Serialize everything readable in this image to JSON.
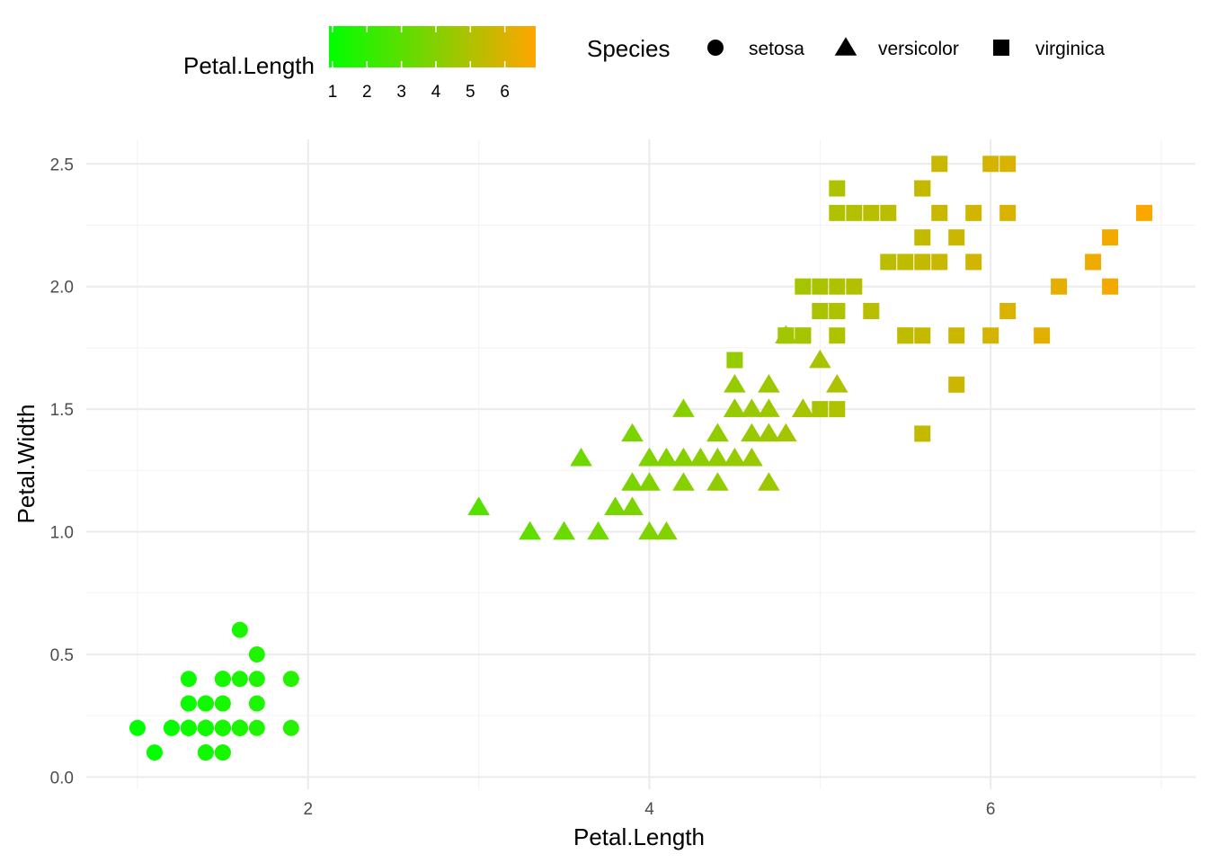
{
  "chart_data": {
    "type": "scatter",
    "xlabel": "Petal.Length",
    "ylabel": "Petal.Width",
    "xlim": [
      0.7,
      7.2
    ],
    "ylim": [
      -0.05,
      2.6
    ],
    "x_ticks": [
      2,
      4,
      6
    ],
    "y_ticks": [
      0.0,
      0.5,
      1.0,
      1.5,
      2.0,
      2.5
    ],
    "x_tick_labels": [
      "2",
      "4",
      "6"
    ],
    "y_tick_labels": [
      "0.0",
      "0.5",
      "1.0",
      "1.5",
      "2.0",
      "2.5"
    ],
    "grid": true,
    "theme": "minimal",
    "legend_position": "top",
    "color_legend": {
      "title": "Petal.Length",
      "range": [
        1,
        7
      ],
      "ticks": [
        1,
        2,
        3,
        4,
        5,
        6
      ],
      "tick_labels": [
        "1",
        "2",
        "3",
        "4",
        "5",
        "6"
      ],
      "low_color": "#00ff00",
      "high_color": "#ffa500"
    },
    "shape_legend": {
      "title": "Species",
      "items": [
        {
          "label": "setosa",
          "shape": "circle"
        },
        {
          "label": "versicolor",
          "shape": "triangle"
        },
        {
          "label": "virginica",
          "shape": "square"
        }
      ]
    },
    "series": [
      {
        "species": "setosa",
        "shape": "circle",
        "x": [
          1.4,
          1.4,
          1.3,
          1.5,
          1.4,
          1.7,
          1.4,
          1.5,
          1.4,
          1.5,
          1.5,
          1.6,
          1.4,
          1.1,
          1.2,
          1.5,
          1.3,
          1.4,
          1.7,
          1.5,
          1.7,
          1.5,
          1.0,
          1.7,
          1.9,
          1.6,
          1.6,
          1.5,
          1.4,
          1.6,
          1.6,
          1.5,
          1.5,
          1.4,
          1.5,
          1.2,
          1.3,
          1.4,
          1.3,
          1.5,
          1.3,
          1.3,
          1.3,
          1.6,
          1.9,
          1.4,
          1.6,
          1.4,
          1.5,
          1.4
        ],
        "y": [
          0.2,
          0.2,
          0.2,
          0.2,
          0.2,
          0.4,
          0.3,
          0.2,
          0.2,
          0.1,
          0.2,
          0.2,
          0.1,
          0.1,
          0.2,
          0.4,
          0.4,
          0.3,
          0.3,
          0.3,
          0.2,
          0.4,
          0.2,
          0.5,
          0.2,
          0.2,
          0.4,
          0.2,
          0.2,
          0.2,
          0.2,
          0.4,
          0.1,
          0.2,
          0.2,
          0.2,
          0.2,
          0.1,
          0.2,
          0.2,
          0.3,
          0.3,
          0.2,
          0.6,
          0.4,
          0.3,
          0.2,
          0.2,
          0.2,
          0.2
        ]
      },
      {
        "species": "versicolor",
        "shape": "triangle",
        "x": [
          4.7,
          4.5,
          4.9,
          4.0,
          4.6,
          4.5,
          4.7,
          3.3,
          4.6,
          3.9,
          3.5,
          4.2,
          4.0,
          4.7,
          3.6,
          4.4,
          4.5,
          4.1,
          4.5,
          3.9,
          4.8,
          4.0,
          4.9,
          4.7,
          4.3,
          4.4,
          4.8,
          5.0,
          4.5,
          3.5,
          3.8,
          3.7,
          3.9,
          5.1,
          4.5,
          4.5,
          4.7,
          4.4,
          4.1,
          4.0,
          4.4,
          4.6,
          4.0,
          3.3,
          4.2,
          4.2,
          4.2,
          4.3,
          3.0,
          4.1
        ],
        "y": [
          1.4,
          1.5,
          1.5,
          1.3,
          1.5,
          1.3,
          1.6,
          1.0,
          1.3,
          1.4,
          1.0,
          1.5,
          1.0,
          1.4,
          1.3,
          1.4,
          1.5,
          1.0,
          1.5,
          1.1,
          1.8,
          1.3,
          1.5,
          1.2,
          1.3,
          1.4,
          1.4,
          1.7,
          1.5,
          1.0,
          1.1,
          1.0,
          1.2,
          1.6,
          1.5,
          1.6,
          1.5,
          1.3,
          1.3,
          1.3,
          1.2,
          1.4,
          1.2,
          1.0,
          1.3,
          1.2,
          1.3,
          1.3,
          1.1,
          1.3
        ]
      },
      {
        "species": "virginica",
        "shape": "square",
        "x": [
          6.0,
          5.1,
          5.9,
          5.6,
          5.8,
          6.6,
          4.5,
          6.3,
          5.8,
          6.1,
          5.1,
          5.3,
          5.5,
          5.0,
          5.1,
          5.3,
          5.5,
          6.7,
          6.9,
          5.0,
          5.7,
          4.9,
          6.7,
          4.9,
          5.7,
          6.0,
          4.8,
          4.9,
          5.6,
          5.8,
          6.1,
          6.4,
          5.6,
          5.1,
          5.6,
          6.1,
          5.6,
          5.5,
          4.8,
          5.4,
          5.6,
          5.1,
          5.1,
          5.9,
          5.7,
          5.2,
          5.0,
          5.2,
          5.4,
          5.1
        ],
        "y": [
          2.5,
          1.9,
          2.1,
          1.8,
          2.2,
          2.1,
          1.7,
          1.8,
          1.8,
          2.5,
          2.0,
          1.9,
          2.1,
          2.0,
          2.4,
          2.3,
          1.8,
          2.2,
          2.3,
          1.5,
          2.3,
          2.0,
          2.0,
          1.8,
          2.1,
          1.8,
          1.8,
          1.8,
          2.1,
          1.6,
          1.9,
          2.0,
          2.2,
          1.5,
          1.4,
          2.3,
          2.4,
          1.8,
          1.8,
          2.1,
          2.4,
          2.3,
          1.9,
          2.3,
          2.5,
          2.3,
          1.9,
          2.0,
          2.3,
          1.8
        ]
      }
    ]
  }
}
